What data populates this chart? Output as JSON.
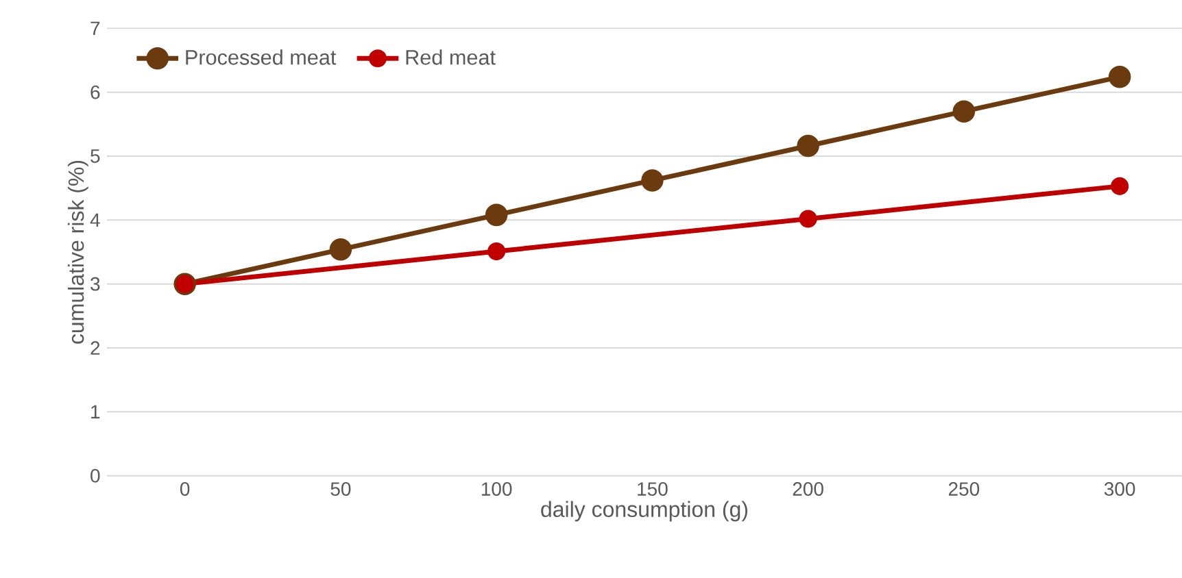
{
  "chart_data": {
    "type": "line",
    "xlabel": "daily consumption (g)",
    "ylabel": "cumulative risk (%)",
    "xlim": [
      -25,
      320
    ],
    "ylim": [
      0,
      7
    ],
    "xticks": [
      0,
      50,
      100,
      150,
      200,
      250,
      300
    ],
    "yticks": [
      0,
      1,
      2,
      3,
      4,
      5,
      6,
      7
    ],
    "grid": "y",
    "legend": "top left",
    "marker": "circle",
    "line_style": "solid",
    "series": [
      {
        "name": "Processed meat",
        "color": "#6b3a0f",
        "x": [
          0,
          50,
          100,
          150,
          200,
          250,
          300
        ],
        "values": [
          3.0,
          3.54,
          4.08,
          4.62,
          5.16,
          5.7,
          6.24
        ]
      },
      {
        "name": "Red meat",
        "color": "#c00000",
        "x": [
          0,
          100,
          200,
          300
        ],
        "values": [
          3.0,
          3.51,
          4.02,
          4.53
        ]
      }
    ]
  }
}
